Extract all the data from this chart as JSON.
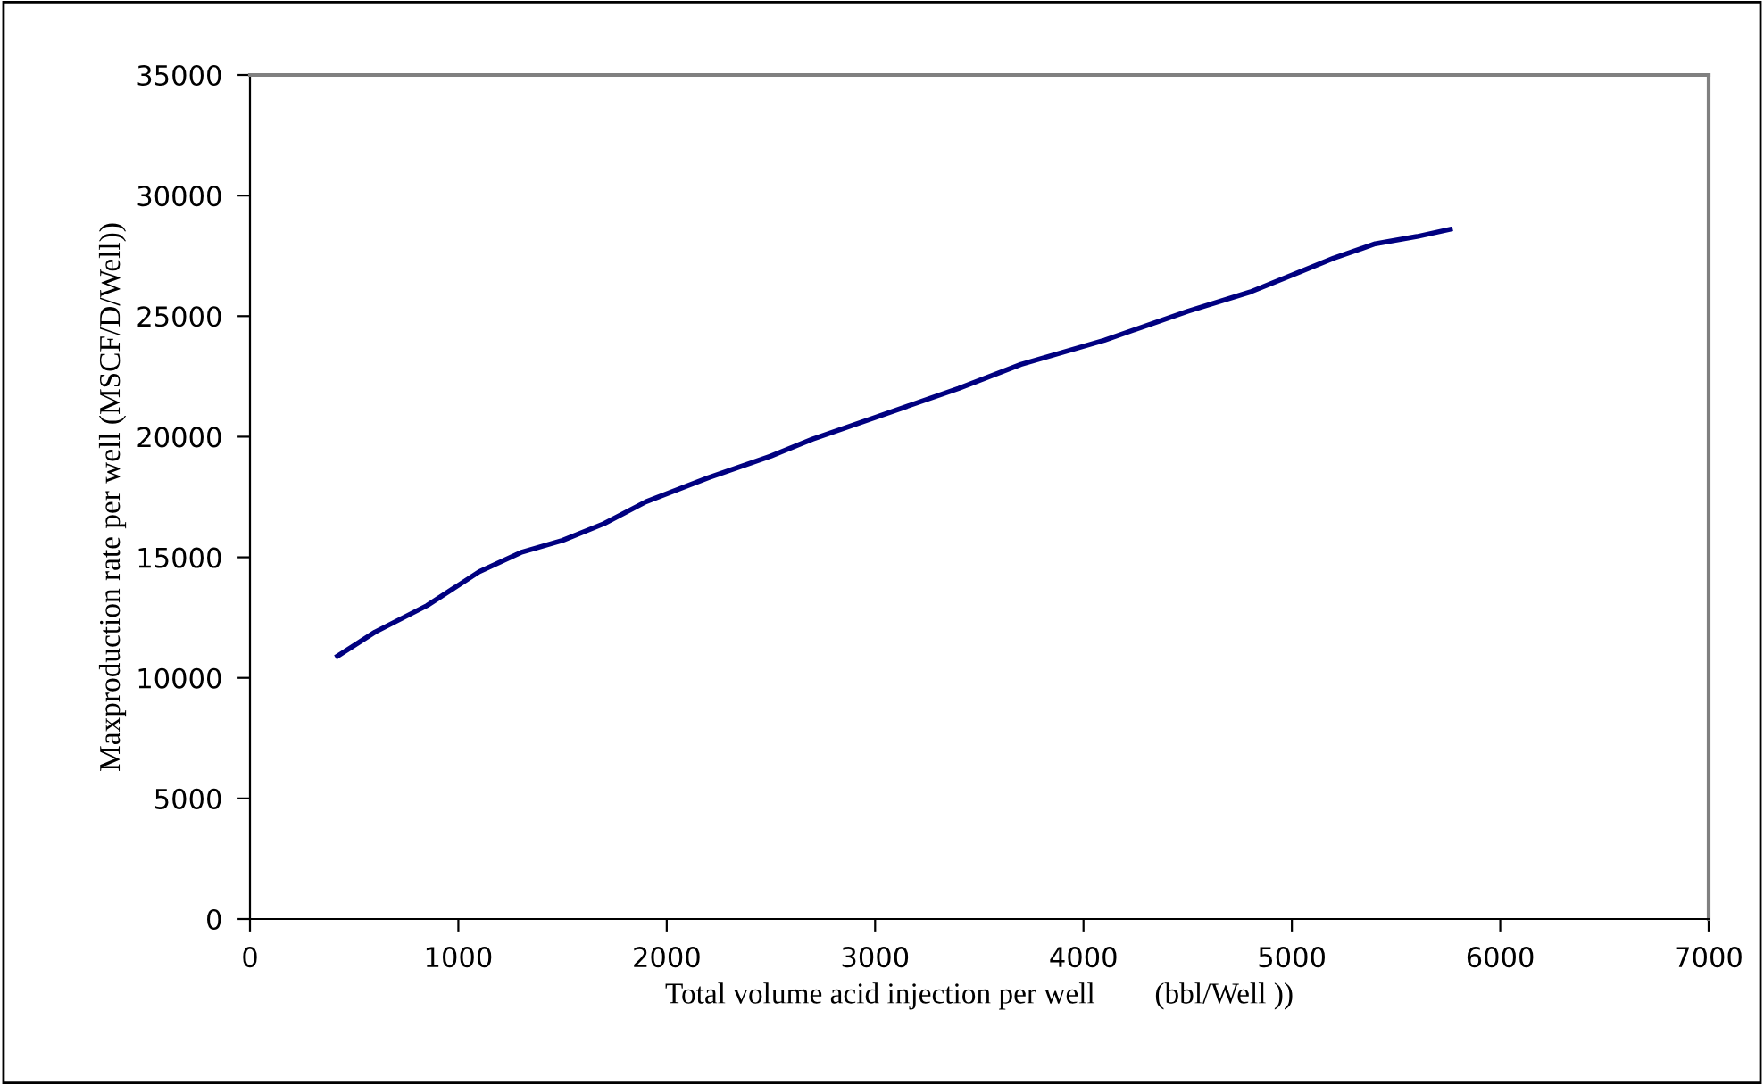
{
  "chart_data": {
    "type": "line",
    "xlabel": "Total volume acid injection per well        (bbl/Well ))",
    "ylabel": "Maxproduction rate per well (MSCF/D/Well))",
    "x": [
      420,
      600,
      850,
      1100,
      1300,
      1500,
      1700,
      1900,
      2200,
      2500,
      2700,
      3000,
      3400,
      3700,
      3900,
      4100,
      4300,
      4500,
      4800,
      5000,
      5200,
      5400,
      5600,
      5760
    ],
    "series": [
      {
        "color": "#000080",
        "values": [
          10900,
          11900,
          13000,
          14400,
          15200,
          15700,
          16400,
          17300,
          18300,
          19200,
          19900,
          20800,
          22000,
          23000,
          23500,
          24000,
          24600,
          25200,
          26000,
          26700,
          27400,
          28000,
          28300,
          28600
        ]
      }
    ],
    "xlim": [
      0,
      7000
    ],
    "xticks": [
      0,
      1000,
      2000,
      3000,
      4000,
      5000,
      6000,
      7000
    ],
    "ylim": [
      0,
      35000
    ],
    "yticks": [
      0,
      5000,
      10000,
      15000,
      20000,
      25000,
      30000,
      35000
    ],
    "grid": false,
    "marker": "none",
    "line_style": "solid"
  }
}
